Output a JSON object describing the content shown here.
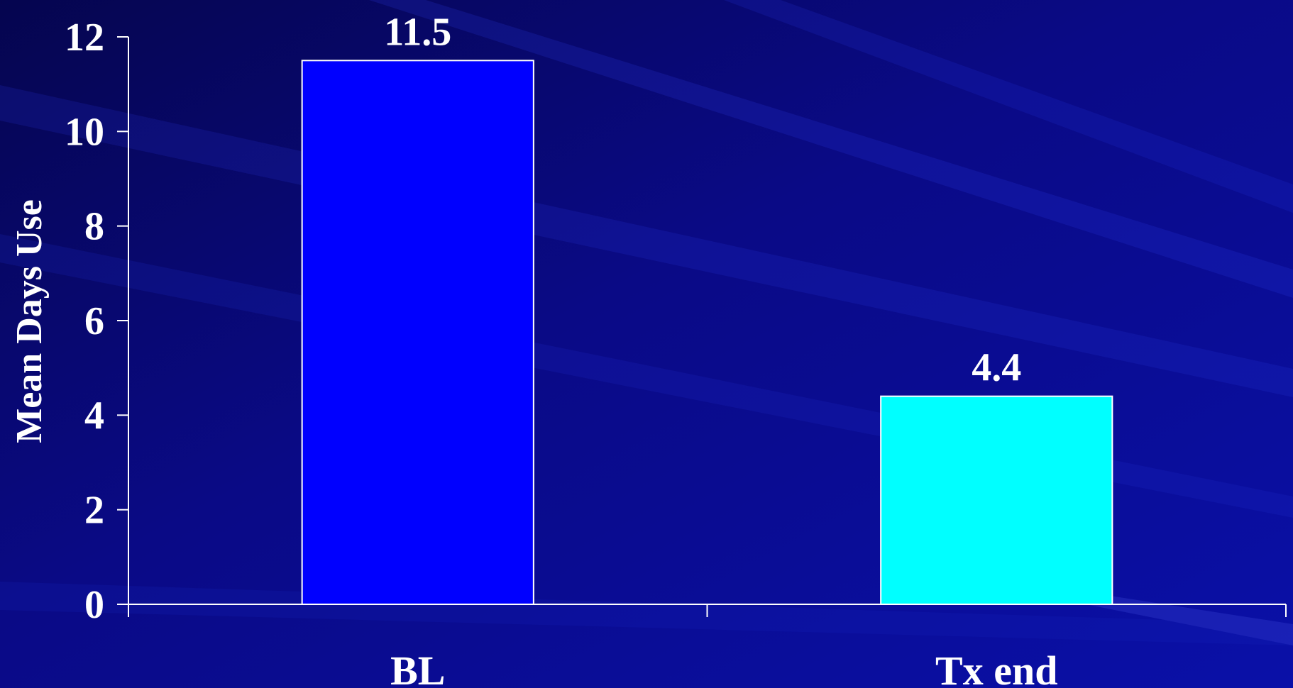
{
  "chart_data": {
    "type": "bar",
    "title": "",
    "xlabel": "",
    "ylabel": "Mean Days Use",
    "categories": [
      "BL",
      "Tx end"
    ],
    "values": [
      11.5,
      4.4
    ],
    "data_labels": [
      "11.5",
      "4.4"
    ],
    "bar_colors": [
      "#0000ff",
      "#00ffff"
    ],
    "ylim": [
      0,
      12
    ],
    "yticks": [
      0,
      2,
      4,
      6,
      8,
      10,
      12
    ],
    "grid": false,
    "legend": "none"
  },
  "colors": {
    "background": "#0a0a8a",
    "axis": "#ffffff",
    "text": "#ffffff"
  }
}
